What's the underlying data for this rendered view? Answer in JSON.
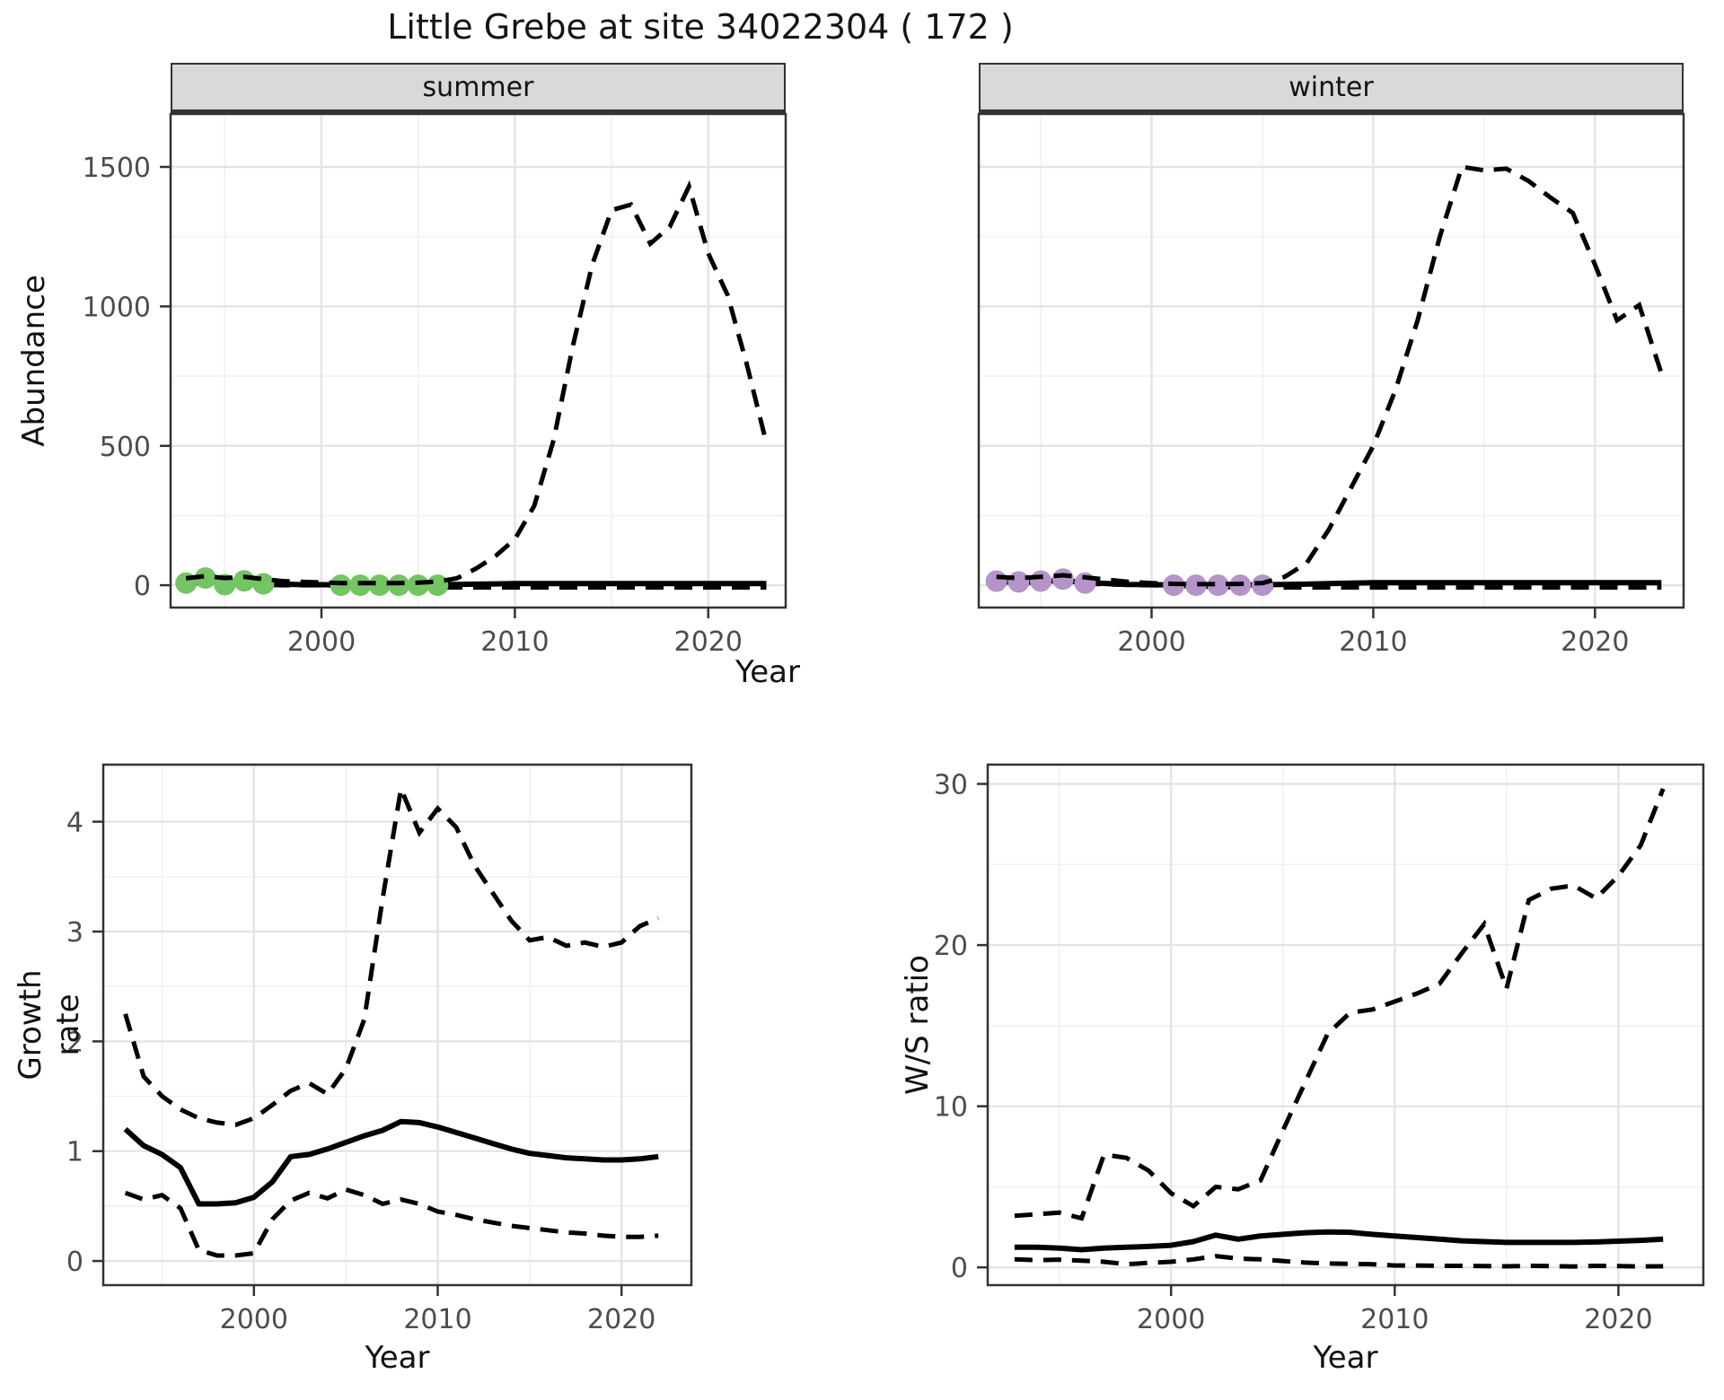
{
  "title": "Little Grebe at site 34022304 ( 172 )",
  "axes": {
    "abundance": "Abundance",
    "year": "Year",
    "growth": "Growth rate",
    "ws": "W/S ratio"
  },
  "colors": {
    "summer_points": "#74c464",
    "winter_points": "#b494c9",
    "line": "#000000",
    "strip_bg": "#d9d9d9",
    "panel_border": "#333333",
    "grid_major": "#e4e4e4",
    "grid_minor": "#f1f1f1",
    "tick_text": "#4d4d4d"
  },
  "chart_data": [
    {
      "id": "abundance-summer",
      "type": "line",
      "facet": "summer",
      "xlabel": "Year",
      "ylabel": "Abundance",
      "xticks": [
        2000,
        2010,
        2020
      ],
      "yticks": [
        0,
        500,
        1000,
        1500
      ],
      "xlim": [
        1992.2,
        2024
      ],
      "ylim": [
        0,
        1500
      ],
      "x": [
        1993,
        1994,
        1995,
        1996,
        1997,
        1998,
        1999,
        2000,
        2001,
        2002,
        2003,
        2004,
        2005,
        2006,
        2007,
        2008,
        2009,
        2010,
        2011,
        2012,
        2013,
        2014,
        2015,
        2016,
        2017,
        2018,
        2019,
        2020,
        2021,
        2022,
        2023
      ],
      "series": [
        {
          "name": "fit",
          "style": "solid",
          "values": [
            12,
            15,
            10,
            13,
            8,
            4,
            2,
            2,
            1,
            1,
            1,
            1,
            1,
            2,
            3,
            4,
            5,
            6,
            6,
            6,
            6,
            6,
            6,
            6,
            6,
            6,
            6,
            6,
            6,
            6,
            6
          ]
        },
        {
          "name": "upper_ci",
          "style": "dashed",
          "values": [
            25,
            33,
            26,
            30,
            22,
            15,
            12,
            10,
            8,
            8,
            8,
            8,
            9,
            13,
            25,
            60,
            105,
            165,
            285,
            520,
            860,
            1150,
            1345,
            1365,
            1225,
            1285,
            1430,
            1190,
            1040,
            790,
            510
          ]
        },
        {
          "name": "lower_ci",
          "style": "dashed",
          "values": [
            5,
            9,
            3,
            6,
            2,
            0,
            0,
            0,
            -2,
            -4,
            -6,
            -8,
            -8,
            -8,
            -8,
            -8,
            -8,
            -8,
            -8,
            -8,
            -8,
            -8,
            -8,
            -8,
            -8,
            -8,
            -8,
            -8,
            -8,
            -8,
            -8
          ]
        }
      ],
      "points": {
        "color": "#74c464",
        "x": [
          1993,
          1994,
          1995,
          1996,
          1997,
          2001,
          2002,
          2003,
          2004,
          2005,
          2006
        ],
        "y": [
          8,
          26,
          2,
          16,
          5,
          0,
          0,
          0,
          0,
          0,
          0
        ]
      }
    },
    {
      "id": "abundance-winter",
      "type": "line",
      "facet": "winter",
      "xlabel": "Year",
      "ylabel": "Abundance",
      "xticks": [
        2000,
        2010,
        2020
      ],
      "yticks": [
        0,
        500,
        1000,
        1500
      ],
      "xlim": [
        1992.2,
        2024
      ],
      "ylim": [
        0,
        1500
      ],
      "x": [
        1993,
        1994,
        1995,
        1996,
        1997,
        1998,
        1999,
        2000,
        2001,
        2002,
        2003,
        2004,
        2005,
        2006,
        2007,
        2008,
        2009,
        2010,
        2011,
        2012,
        2013,
        2014,
        2015,
        2016,
        2017,
        2018,
        2019,
        2020,
        2021,
        2022,
        2023
      ],
      "series": [
        {
          "name": "fit",
          "style": "solid",
          "values": [
            15,
            13,
            14,
            17,
            10,
            6,
            3,
            2,
            1,
            1,
            1,
            1,
            2,
            3,
            4,
            6,
            8,
            9,
            9,
            9,
            9,
            9,
            9,
            9,
            9,
            9,
            9,
            9,
            9,
            9,
            9
          ]
        },
        {
          "name": "upper_ci",
          "style": "dashed",
          "values": [
            30,
            26,
            30,
            36,
            28,
            20,
            12,
            8,
            5,
            4,
            4,
            5,
            8,
            30,
            80,
            200,
            350,
            500,
            700,
            950,
            1250,
            1500,
            1488,
            1494,
            1450,
            1390,
            1335,
            1150,
            950,
            1005,
            760
          ]
        },
        {
          "name": "lower_ci",
          "style": "dashed",
          "values": [
            11,
            9,
            10,
            13,
            7,
            3,
            1,
            0,
            -2,
            -4,
            -6,
            -8,
            -8,
            -8,
            -8,
            -8,
            -8,
            -8,
            -8,
            -8,
            -8,
            -8,
            -8,
            -8,
            -8,
            -8,
            -8,
            -8,
            -8,
            -8,
            -8
          ]
        }
      ],
      "points": {
        "color": "#b494c9",
        "x": [
          1993,
          1994,
          1995,
          1996,
          1997,
          2001,
          2002,
          2003,
          2004,
          2005
        ],
        "y": [
          15,
          12,
          15,
          22,
          8,
          0,
          0,
          0,
          0,
          0
        ]
      }
    },
    {
      "id": "growth-rate",
      "type": "line",
      "facet": "",
      "xlabel": "Year",
      "ylabel": "Growth rate",
      "xticks": [
        2000,
        2010,
        2020
      ],
      "yticks": [
        0,
        1,
        2,
        3,
        4
      ],
      "xlim": [
        1991.8,
        2023.8
      ],
      "ylim": [
        0,
        4.3
      ],
      "x": [
        1993,
        1994,
        1995,
        1996,
        1997,
        1998,
        1999,
        2000,
        2001,
        2002,
        2003,
        2004,
        2005,
        2006,
        2007,
        2008,
        2009,
        2010,
        2011,
        2012,
        2013,
        2014,
        2015,
        2016,
        2017,
        2018,
        2019,
        2020,
        2021,
        2022
      ],
      "series": [
        {
          "name": "fit",
          "style": "solid",
          "values": [
            1.2,
            1.05,
            0.97,
            0.85,
            0.52,
            0.52,
            0.53,
            0.58,
            0.72,
            0.95,
            0.97,
            1.02,
            1.08,
            1.14,
            1.19,
            1.27,
            1.26,
            1.22,
            1.17,
            1.12,
            1.07,
            1.02,
            0.98,
            0.96,
            0.94,
            0.93,
            0.92,
            0.92,
            0.93,
            0.95
          ]
        },
        {
          "name": "upper_ci",
          "style": "dashed",
          "values": [
            2.25,
            1.68,
            1.5,
            1.38,
            1.3,
            1.26,
            1.24,
            1.3,
            1.42,
            1.55,
            1.62,
            1.52,
            1.75,
            2.2,
            3.3,
            4.3,
            3.9,
            4.12,
            3.95,
            3.6,
            3.35,
            3.1,
            2.92,
            2.95,
            2.87,
            2.9,
            2.86,
            2.9,
            3.05,
            3.12
          ]
        },
        {
          "name": "lower_ci",
          "style": "dashed",
          "values": [
            0.62,
            0.56,
            0.6,
            0.48,
            0.1,
            0.05,
            0.05,
            0.07,
            0.38,
            0.55,
            0.62,
            0.57,
            0.65,
            0.6,
            0.52,
            0.56,
            0.52,
            0.45,
            0.42,
            0.38,
            0.35,
            0.32,
            0.3,
            0.28,
            0.26,
            0.25,
            0.23,
            0.22,
            0.22,
            0.23
          ]
        }
      ]
    },
    {
      "id": "ws-ratio",
      "type": "line",
      "facet": "",
      "xlabel": "Year",
      "ylabel": "W/S ratio",
      "xticks": [
        2000,
        2010,
        2020
      ],
      "yticks": [
        0,
        10,
        20,
        30
      ],
      "xlim": [
        1991.8,
        2023.8
      ],
      "ylim": [
        0,
        29.7
      ],
      "x": [
        1993,
        1994,
        1995,
        1996,
        1997,
        1998,
        1999,
        2000,
        2001,
        2002,
        2003,
        2004,
        2005,
        2006,
        2007,
        2008,
        2009,
        2010,
        2011,
        2012,
        2013,
        2014,
        2015,
        2016,
        2017,
        2018,
        2019,
        2020,
        2021,
        2022
      ],
      "series": [
        {
          "name": "fit",
          "style": "solid",
          "values": [
            1.25,
            1.25,
            1.2,
            1.1,
            1.2,
            1.25,
            1.3,
            1.37,
            1.6,
            2.0,
            1.75,
            1.95,
            2.05,
            2.15,
            2.2,
            2.18,
            2.05,
            1.95,
            1.85,
            1.75,
            1.65,
            1.6,
            1.55,
            1.55,
            1.55,
            1.55,
            1.58,
            1.63,
            1.68,
            1.75
          ]
        },
        {
          "name": "upper_ci",
          "style": "dashed",
          "values": [
            3.2,
            3.3,
            3.4,
            3.05,
            7.0,
            6.8,
            6.0,
            4.6,
            3.8,
            5.0,
            4.85,
            5.4,
            8.5,
            11.5,
            14.5,
            15.8,
            16.0,
            16.5,
            17.0,
            17.6,
            19.5,
            21.3,
            17.3,
            22.8,
            23.5,
            23.7,
            22.9,
            24.3,
            26.2,
            29.7
          ]
        },
        {
          "name": "lower_ci",
          "style": "dashed",
          "values": [
            0.5,
            0.45,
            0.48,
            0.42,
            0.35,
            0.2,
            0.28,
            0.35,
            0.5,
            0.7,
            0.55,
            0.5,
            0.4,
            0.3,
            0.25,
            0.22,
            0.2,
            0.12,
            0.12,
            0.1,
            0.1,
            0.08,
            0.07,
            0.1,
            0.08,
            0.06,
            0.1,
            0.08,
            0.06,
            0.07
          ]
        }
      ]
    }
  ]
}
